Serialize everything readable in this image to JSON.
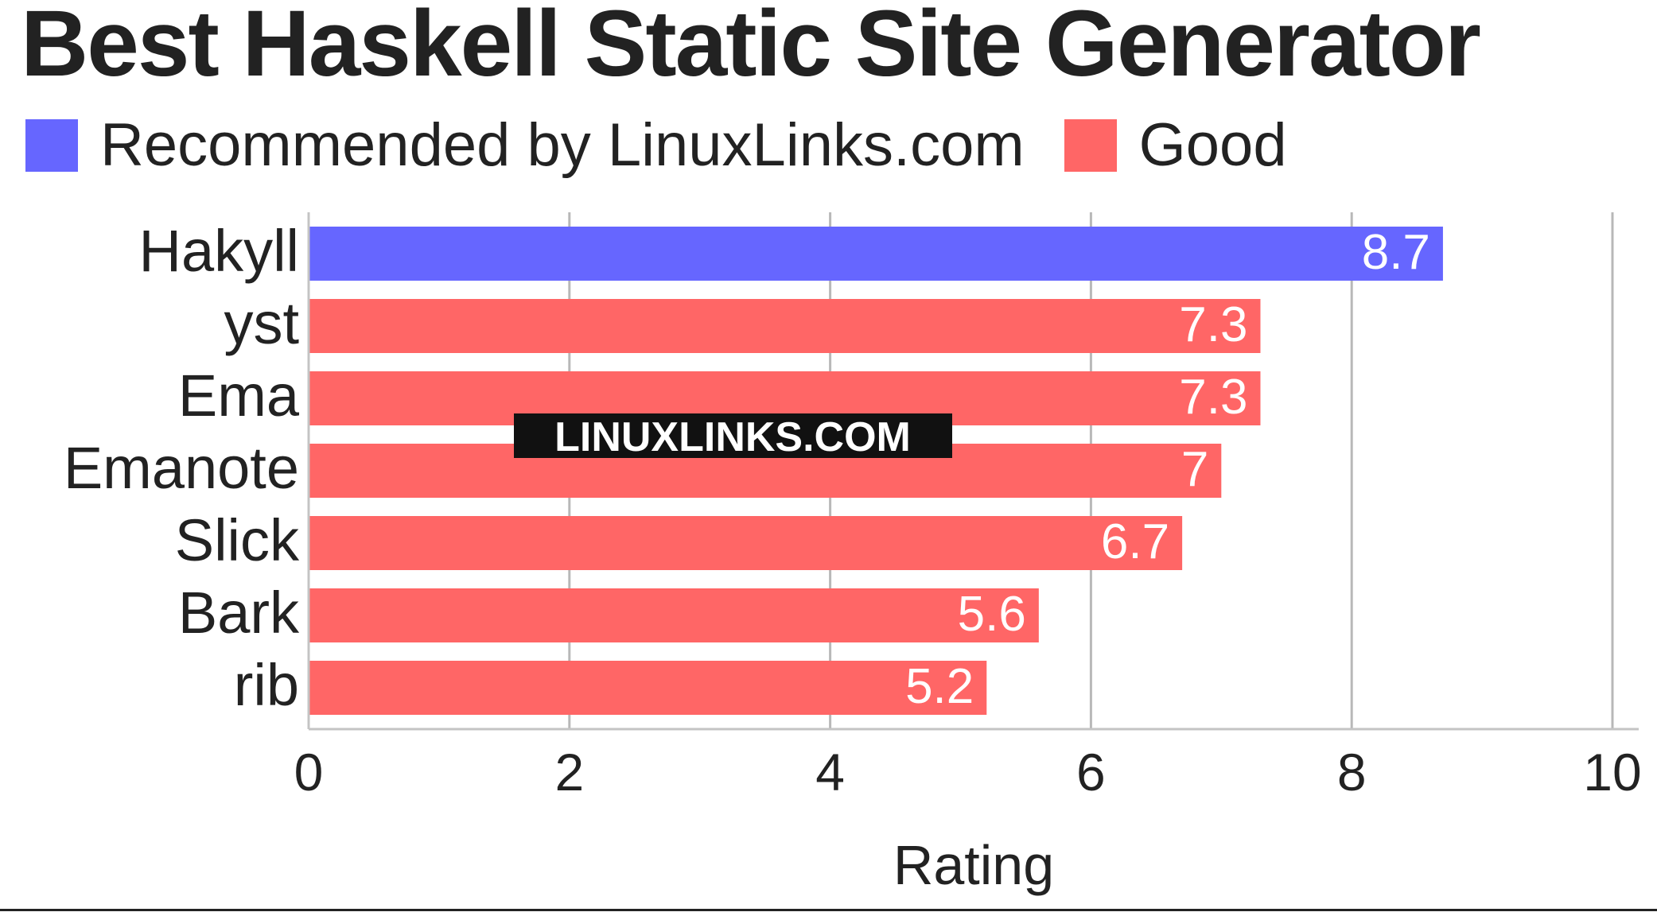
{
  "chart_data": {
    "type": "bar",
    "orientation": "horizontal",
    "title": "Best Haskell Static Site Generator",
    "xlabel": "Rating",
    "ylabel": "",
    "xlim": [
      0,
      10
    ],
    "x_ticks": [
      "0",
      "2",
      "4",
      "6",
      "8",
      "10"
    ],
    "grid": true,
    "legend_position": "top-left",
    "legend": [
      {
        "name": "Recommended by LinuxLinks.com",
        "color": "#6666ff"
      },
      {
        "name": "Good",
        "color": "#ff6666"
      }
    ],
    "categories": [
      "Hakyll",
      "yst",
      "Ema",
      "Emanote",
      "Slick",
      "Bark",
      "rib"
    ],
    "values": [
      8.7,
      7.3,
      7.3,
      7,
      6.7,
      5.6,
      5.2
    ],
    "value_labels": [
      "8.7",
      "7.3",
      "7.3",
      "7",
      "6.7",
      "5.6",
      "5.2"
    ],
    "bar_groups": [
      "Recommended by LinuxLinks.com",
      "Good",
      "Good",
      "Good",
      "Good",
      "Good",
      "Good"
    ]
  },
  "watermark": "LINUXLINKS.COM"
}
